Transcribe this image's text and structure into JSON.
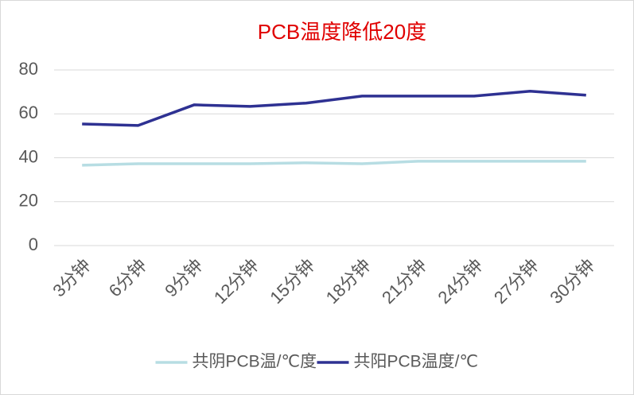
{
  "chart_data": {
    "type": "line",
    "title": "PCB温度降低20度",
    "categories": [
      "3分钟",
      "6分钟",
      "9分钟",
      "12分钟",
      "15分钟",
      "18分钟",
      "21分钟",
      "24分钟",
      "27分钟",
      "30分钟"
    ],
    "series": [
      {
        "name": "共阴PCB温/℃度",
        "color": "#b7dde3",
        "values": [
          36.6,
          37.3,
          37.3,
          37.3,
          37.7,
          37.3,
          38.4,
          38.4,
          38.4,
          38.4
        ]
      },
      {
        "name": "共阳PCB温度/℃",
        "color": "#2e3192",
        "values": [
          55.4,
          54.7,
          64.1,
          63.4,
          64.9,
          68.1,
          68.1,
          68.1,
          70.3,
          68.5
        ]
      }
    ],
    "ylim": [
      0,
      80
    ],
    "yticks": [
      0,
      20,
      40,
      60,
      80
    ],
    "grid": true,
    "legend": "bottom",
    "title_color": "#e00000"
  }
}
